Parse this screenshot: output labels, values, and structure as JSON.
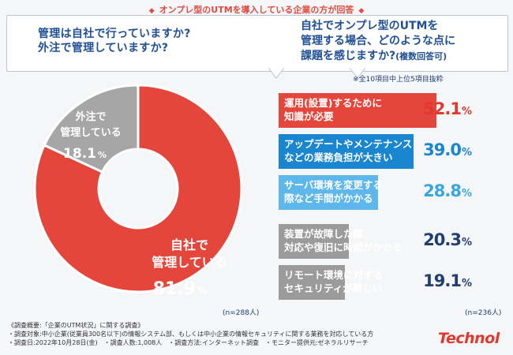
{
  "header_tag": "オンプレ型のUTMを導入している企業の方が回答",
  "question_left": [
    "管理は自社で行っていますか?",
    "外注で管理していますか?"
  ],
  "question_right": [
    "自社でオンプレ型のUTMを",
    "管理する場合、どのような点に",
    "課題を感じますか?"
  ],
  "question_right_suffix": "(複数回答可)",
  "top_note": "※全10項目中上位5項目抜粋",
  "n_left": "(n=288人)",
  "n_right": "(n=236人)",
  "survey": [
    "《調査概要:「企業のUTM状況」に関する調査》",
    "・調査対象:中小企業(従業員300名以下)の情報システム部、もしくは中小企業の情報セキュリティに関する業務を対応している方",
    "・調査日:2022年10月28日(金)　・調査人数:1,008人　・調査方法:インターネット調査　・モニター提供元:ゼネラルリサーチ"
  ],
  "logo": "Technol",
  "chart_data": [
    {
      "type": "pie",
      "slices": [
        {
          "label": "自社で管理している",
          "label_lines": [
            "自社で",
            "管理している"
          ],
          "value": 81.9,
          "display": "81.9",
          "color": "#e5463b"
        },
        {
          "label": "外注で管理している",
          "label_lines": [
            "外注で",
            "管理している"
          ],
          "value": 18.1,
          "display": "18.1",
          "color": "#a6a6a6"
        }
      ],
      "unit": "%"
    },
    {
      "type": "bar",
      "unit": "%",
      "categories": [
        "運用(設置)するために知識が必要",
        "アップデートやメンテナンスなどの業務負担が大きい",
        "サーバ環境を変更する際など手間がかかる",
        "装置が故障した際、対応や復旧に時間がかかる",
        "リモート環境に対するセキュリティが難しい"
      ],
      "label_lines": [
        [
          "運用(設置)するために",
          "知識が必要"
        ],
        [
          "アップデートやメンテナンス",
          "などの業務負担が大きい"
        ],
        [
          "サーバ環境を変更する",
          "際など手間がかかる"
        ],
        [
          "装置が故障した際、",
          "対応や復旧に時間がかかる"
        ],
        [
          "リモート環境に対する",
          "セキュリティが難しい"
        ]
      ],
      "values": [
        52.1,
        39.0,
        28.8,
        20.3,
        19.1
      ],
      "display": [
        "52.1",
        "39.0",
        "28.8",
        "20.3",
        "19.1"
      ],
      "colors": [
        "#e5463b",
        "#1a86cf",
        "#5db7ea",
        "#9b9b9b",
        "#9b9b9b"
      ],
      "text_colors": [
        "#e03a2e",
        "#1a86cf",
        "#3aa6e0",
        "#1f3f73",
        "#1f3f73"
      ]
    }
  ]
}
